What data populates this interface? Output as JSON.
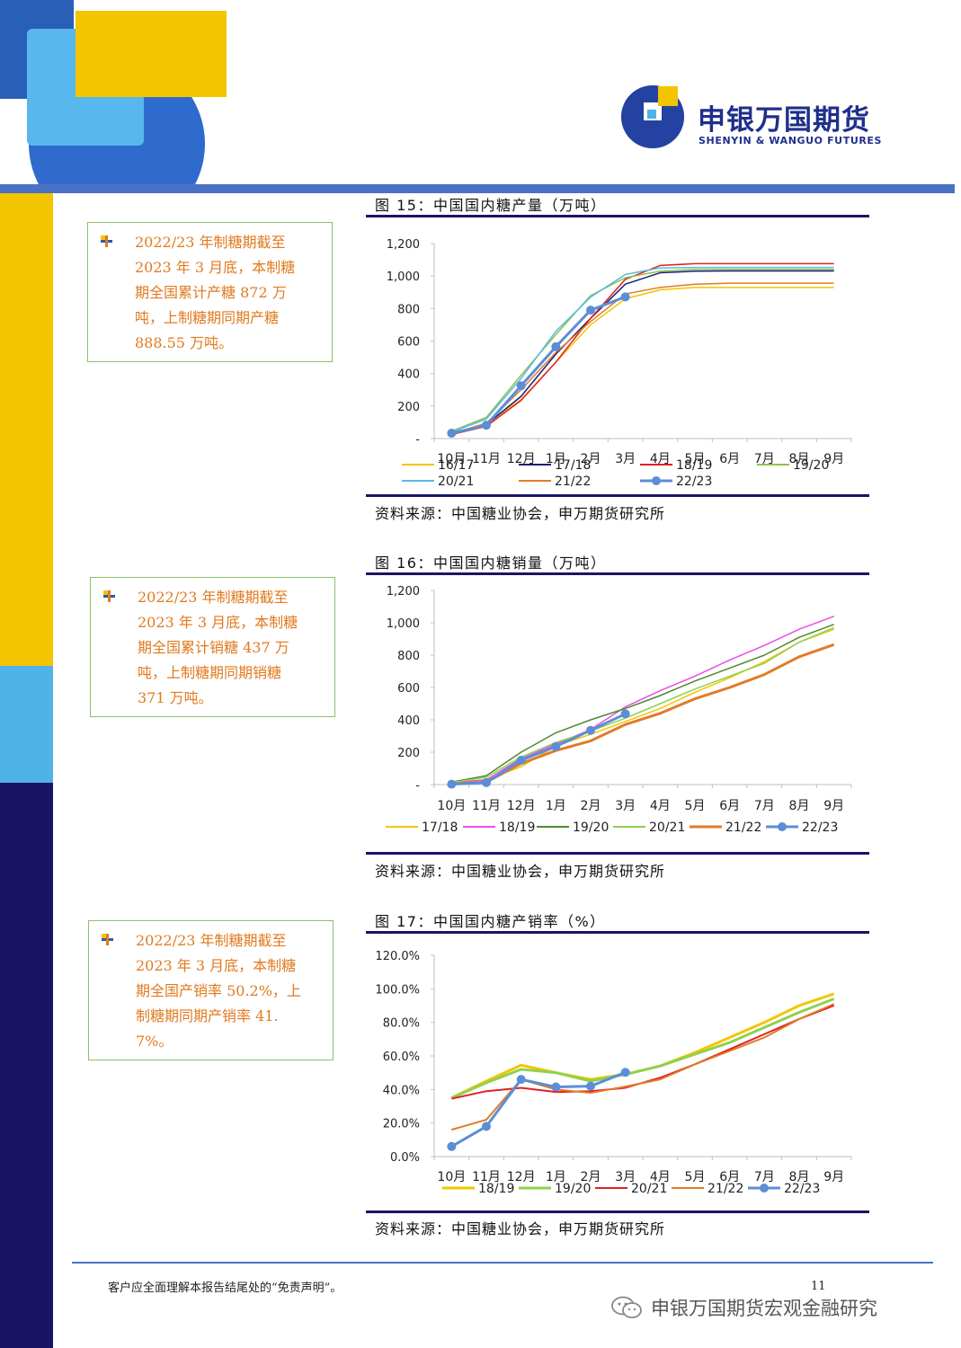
{
  "header": {
    "logo_cn": "申银万国期货",
    "logo_en": "SHENYIN & WANGUO FUTURES"
  },
  "colors": {
    "yellow": "#f2c500",
    "light_blue": "#4fb3ea",
    "navy": "#1b1464",
    "blue": "#2a6fc8",
    "rule": "#4a72c4"
  },
  "notes": [
    {
      "text": "2022/23 年制糖期截至 2023 年 3 月底，本制糖期全国累计产糖 872 万吨，上制糖期同期产糖 888.55 万吨。",
      "lines": [
        "2022/23 年制糖期截至",
        "2023 年 3 月底，本制糖",
        "期全国累计产糖 872 万",
        "吨，上制糖期同期产糖",
        "888.55 万吨。"
      ]
    },
    {
      "text": "2022/23 年制糖期截至 2023 年 3 月底，本制糖期全国累计销糖 437 万吨，上制糖期同期销糖 371 万吨。",
      "lines": [
        "2022/23 年制糖期截至",
        "2023 年 3 月底，本制糖",
        "期全国累计销糖 437 万",
        "吨，上制糖期同期销糖",
        "371 万吨。"
      ]
    },
    {
      "text": "2022/23 年制糖期截至 2023 年 3 月底，本制糖期全国产销率 50.2%，上制糖期同期产销率 41.7%。",
      "lines": [
        "2022/23 年制糖期截至",
        "2023 年 3 月底，本制糖",
        "期全国产销率 50.2%，上",
        "制糖期同期产销率 41.",
        "7%。"
      ]
    }
  ],
  "source_text": "资料来源：中国糖业协会，申万期货研究所",
  "footer": {
    "disclaimer": "客户应全面理解本报告结尾处的“免责声明”。",
    "page_number": "11",
    "watermark": "申银万国期货宏观金融研究"
  },
  "chart_data": [
    {
      "type": "line",
      "title": "图 15：中国国内糖产量（万吨）",
      "categories": [
        "10月",
        "11月",
        "12月",
        "1月",
        "2月",
        "3月",
        "4月",
        "5月",
        "6月",
        "7月",
        "8月",
        "9月"
      ],
      "ylim": [
        0,
        1200
      ],
      "yticks": [
        "-",
        "200",
        "400",
        "600",
        "800",
        "1,000",
        "1,200"
      ],
      "grid": false,
      "legend_position": "bottom",
      "series": [
        {
          "name": "16/17",
          "color": "#f5c400",
          "width": 1.5,
          "marker": false,
          "values": [
            28,
            90,
            240,
            470,
            700,
            860,
            915,
            930,
            930,
            930,
            930,
            930
          ]
        },
        {
          "name": "17/18",
          "color": "#1b1e78",
          "width": 1.5,
          "marker": false,
          "values": [
            30,
            85,
            260,
            520,
            740,
            950,
            1020,
            1030,
            1031,
            1031,
            1031,
            1031
          ]
        },
        {
          "name": "18/19",
          "color": "#e02020",
          "width": 1.5,
          "marker": false,
          "values": [
            25,
            75,
            235,
            470,
            740,
            980,
            1065,
            1076,
            1076,
            1076,
            1076,
            1076
          ]
        },
        {
          "name": "19/20",
          "color": "#8bc34a",
          "width": 1.5,
          "marker": false,
          "values": [
            45,
            130,
            390,
            640,
            880,
            990,
            1030,
            1041,
            1041,
            1041,
            1041,
            1041
          ]
        },
        {
          "name": "20/21",
          "color": "#5bb8ea",
          "width": 1.5,
          "marker": false,
          "values": [
            40,
            120,
            370,
            660,
            870,
            1010,
            1050,
            1053,
            1053,
            1053,
            1053,
            1053
          ]
        },
        {
          "name": "21/22",
          "color": "#e07b29",
          "width": 1.5,
          "marker": false,
          "values": [
            30,
            95,
            300,
            530,
            720,
            890,
            930,
            950,
            956,
            956,
            956,
            956
          ]
        },
        {
          "name": "22/23",
          "color": "#5b8ed6",
          "width": 3,
          "marker": true,
          "values": [
            33,
            82,
            325,
            565,
            790,
            872,
            null,
            null,
            null,
            null,
            null,
            null
          ]
        }
      ]
    },
    {
      "type": "line",
      "title": "图 16：中国国内糖销量（万吨）",
      "categories": [
        "10月",
        "11月",
        "12月",
        "1月",
        "2月",
        "3月",
        "4月",
        "5月",
        "6月",
        "7月",
        "8月",
        "9月"
      ],
      "ylim": [
        0,
        1200
      ],
      "yticks": [
        "-",
        "200",
        "400",
        "600",
        "800",
        "1,000",
        "1,200"
      ],
      "grid": false,
      "legend_position": "bottom",
      "series": [
        {
          "name": "17/18",
          "color": "#f5c400",
          "width": 1.5,
          "marker": false,
          "values": [
            10,
            30,
            110,
            240,
            310,
            390,
            470,
            570,
            660,
            760,
            880,
            960
          ]
        },
        {
          "name": "18/19",
          "color": "#e84ee8",
          "width": 1.5,
          "marker": false,
          "values": [
            10,
            30,
            160,
            250,
            340,
            480,
            580,
            670,
            770,
            860,
            960,
            1040
          ]
        },
        {
          "name": "19/20",
          "color": "#4e8a2e",
          "width": 1.5,
          "marker": false,
          "values": [
            15,
            55,
            200,
            320,
            400,
            470,
            550,
            640,
            720,
            800,
            910,
            990
          ]
        },
        {
          "name": "20/21",
          "color": "#8fd14f",
          "width": 1.5,
          "marker": false,
          "values": [
            12,
            45,
            170,
            260,
            330,
            410,
            500,
            590,
            670,
            750,
            880,
            970
          ]
        },
        {
          "name": "21/22",
          "color": "#e07b29",
          "width": 3,
          "marker": false,
          "values": [
            5,
            15,
            130,
            210,
            270,
            371,
            440,
            530,
            600,
            680,
            790,
            865
          ]
        },
        {
          "name": "22/23",
          "color": "#5b8ed6",
          "width": 3,
          "marker": true,
          "values": [
            2,
            12,
            150,
            235,
            335,
            437,
            null,
            null,
            null,
            null,
            null,
            null
          ]
        }
      ]
    },
    {
      "type": "line",
      "title": "图 17：中国国内糖产销率（%）",
      "categories": [
        "10月",
        "11月",
        "12月",
        "1月",
        "2月",
        "3月",
        "4月",
        "5月",
        "6月",
        "7月",
        "8月",
        "9月"
      ],
      "ylim": [
        0,
        120
      ],
      "yticks": [
        "0.0%",
        "20.0%",
        "40.0%",
        "60.0%",
        "80.0%",
        "100.0%",
        "120.0%"
      ],
      "grid": false,
      "legend_position": "bottom",
      "series": [
        {
          "name": "18/19",
          "color": "#f5c400",
          "width": 3,
          "marker": false,
          "values": [
            35,
            45,
            54.5,
            50,
            46,
            49,
            54,
            62,
            71,
            80,
            90,
            97
          ]
        },
        {
          "name": "19/20",
          "color": "#8fd14f",
          "width": 3,
          "marker": false,
          "values": [
            35,
            44,
            52,
            50,
            45,
            49,
            54,
            61,
            68,
            77,
            86,
            94
          ]
        },
        {
          "name": "20/21",
          "color": "#e02020",
          "width": 2,
          "marker": false,
          "values": [
            34.5,
            39,
            41,
            38.5,
            39,
            41,
            47,
            55,
            64,
            73,
            82,
            90
          ]
        },
        {
          "name": "21/22",
          "color": "#e07b29",
          "width": 2,
          "marker": false,
          "values": [
            16,
            22,
            46,
            40,
            38,
            41.7,
            46,
            55,
            63,
            71,
            82,
            91
          ]
        },
        {
          "name": "22/23",
          "color": "#5b8ed6",
          "width": 3,
          "marker": true,
          "values": [
            6,
            18,
            46,
            41.5,
            42,
            50.2,
            null,
            null,
            null,
            null,
            null,
            null
          ]
        }
      ]
    }
  ]
}
